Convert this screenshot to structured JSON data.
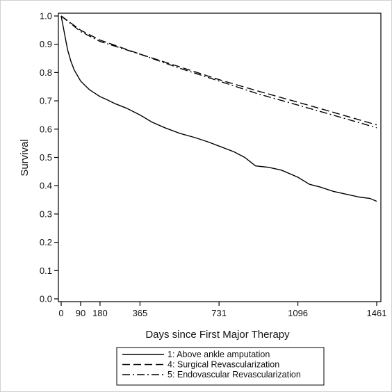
{
  "chart_data": {
    "type": "line",
    "title": "",
    "xlabel": "Days since First Major Therapy",
    "ylabel": "Survival",
    "xlim": [
      0,
      1461
    ],
    "ylim": [
      0.0,
      1.0
    ],
    "x_ticks": [
      0,
      90,
      180,
      365,
      731,
      1096,
      1461
    ],
    "y_ticks": [
      "0.0",
      "0.1",
      "0.2",
      "0.3",
      "0.4",
      "0.5",
      "0.6",
      "0.7",
      "0.8",
      "0.9",
      "1.0"
    ],
    "grid": false,
    "legend_position": "bottom",
    "series": [
      {
        "name": "1: Above ankle amputation",
        "line_style": "solid",
        "color": "#000000",
        "x": [
          0,
          10,
          20,
          30,
          45,
          60,
          75,
          90,
          110,
          130,
          150,
          180,
          210,
          250,
          300,
          365,
          420,
          480,
          550,
          620,
          680,
          731,
          800,
          850,
          900,
          960,
          1020,
          1096,
          1150,
          1200,
          1260,
          1320,
          1380,
          1430,
          1461
        ],
        "y": [
          1.0,
          0.96,
          0.92,
          0.88,
          0.84,
          0.81,
          0.79,
          0.77,
          0.755,
          0.74,
          0.73,
          0.715,
          0.705,
          0.69,
          0.675,
          0.65,
          0.625,
          0.605,
          0.585,
          0.57,
          0.555,
          0.54,
          0.52,
          0.5,
          0.47,
          0.465,
          0.455,
          0.43,
          0.405,
          0.395,
          0.38,
          0.37,
          0.36,
          0.355,
          0.345
        ]
      },
      {
        "name": "4: Surgical Revascularization",
        "line_style": "dashed",
        "color": "#000000",
        "x": [
          0,
          90,
          180,
          365,
          550,
          731,
          910,
          1096,
          1280,
          1461
        ],
        "y": [
          1.0,
          0.95,
          0.915,
          0.865,
          0.82,
          0.775,
          0.735,
          0.695,
          0.655,
          0.615
        ]
      },
      {
        "name": "5: Endovascular Revascularization",
        "line_style": "dash-dot",
        "color": "#000000",
        "x": [
          0,
          90,
          180,
          365,
          550,
          731,
          910,
          1096,
          1280,
          1461
        ],
        "y": [
          1.0,
          0.945,
          0.91,
          0.865,
          0.815,
          0.77,
          0.725,
          0.685,
          0.645,
          0.605
        ]
      }
    ]
  }
}
